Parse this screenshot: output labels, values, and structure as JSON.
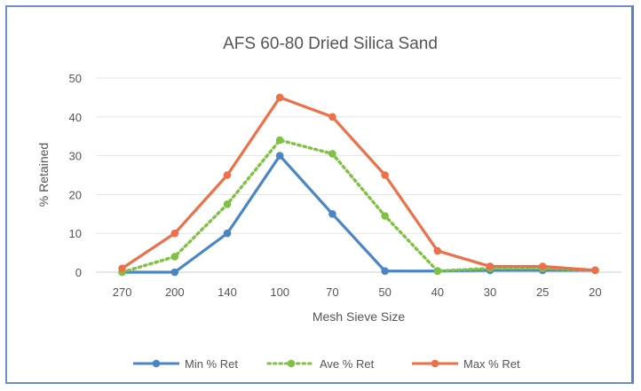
{
  "chart_data": {
    "type": "line",
    "title": "AFS 60-80 Dried Silica Sand",
    "xlabel": "Mesh Sieve Size",
    "ylabel": "% Retained",
    "categories": [
      "270",
      "200",
      "140",
      "100",
      "70",
      "50",
      "40",
      "30",
      "25",
      "20"
    ],
    "ylim": [
      0,
      50
    ],
    "yticks": [
      "0",
      "10",
      "20",
      "30",
      "40",
      "50"
    ],
    "grid": true,
    "legend_position": "bottom",
    "series": [
      {
        "name": "Min % Ret",
        "color": "#4a86c5",
        "style": "solid",
        "values": [
          0,
          0,
          10,
          30,
          15,
          0.3,
          0.3,
          0.5,
          0.5,
          0.5
        ]
      },
      {
        "name": "Ave % Ret",
        "color": "#7fc243",
        "style": "dotted",
        "values": [
          0,
          4,
          17.5,
          34,
          30.5,
          14.5,
          0.3,
          1,
          1,
          0.5
        ]
      },
      {
        "name": "Max % Ret",
        "color": "#ee7048",
        "style": "solid",
        "values": [
          1,
          10,
          25,
          45,
          40,
          25,
          5.5,
          1.5,
          1.5,
          0.5
        ]
      }
    ]
  }
}
